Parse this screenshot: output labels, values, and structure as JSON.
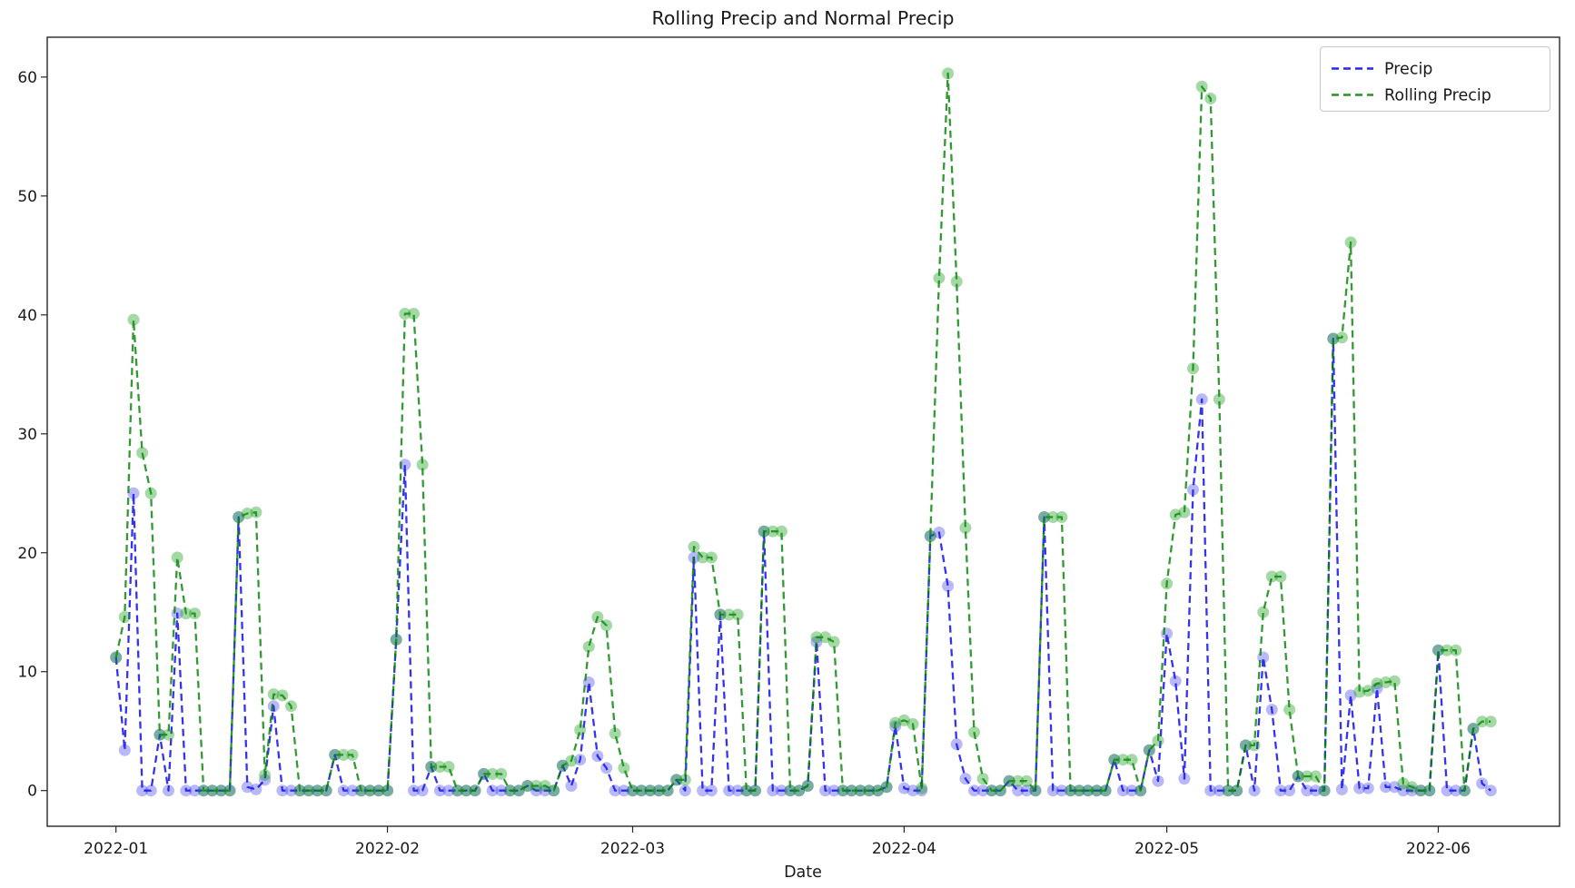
{
  "figure": {
    "title": "Rolling Precip and Normal Precip",
    "xlabel": "Date"
  },
  "legend": {
    "position": "upper right",
    "items": [
      {
        "label": "Precip",
        "color": "#0000ee"
      },
      {
        "label": "Rolling Precip",
        "color": "#1e7d1e"
      }
    ]
  },
  "chart_data": {
    "type": "line",
    "title": "Rolling Precip and Normal Precip",
    "xlabel": "Date",
    "ylabel": "",
    "grid": false,
    "legend_position": "upper right",
    "line_style": "dashed",
    "marker": "circle",
    "x_start_date": "2022-01-01",
    "x_frequency": "daily",
    "n_points": 158,
    "xtick_labels": [
      "2022-01",
      "2022-02",
      "2022-03",
      "2022-04",
      "2022-05",
      "2022-06"
    ],
    "xtick_day_offsets": [
      0,
      31,
      59,
      90,
      120,
      151
    ],
    "ytick_values": [
      0,
      10,
      20,
      30,
      40,
      50,
      60
    ],
    "ylim": [
      -3.0,
      63.35
    ],
    "xlim_day_offsets": [
      -7.85,
      164.85
    ],
    "series": [
      {
        "name": "Precip",
        "color": "#0000ee",
        "values": [
          11.2,
          3.4,
          25.0,
          0,
          0,
          4.7,
          0,
          14.9,
          0,
          0,
          0,
          0,
          0,
          0,
          23.0,
          0.3,
          0.1,
          0.9,
          7.1,
          0,
          0,
          0,
          0,
          0,
          0,
          3.0,
          0,
          0,
          0,
          0,
          0,
          0,
          12.7,
          27.4,
          0,
          0,
          2.0,
          0,
          0,
          0,
          0,
          0,
          1.4,
          0,
          0,
          0,
          0,
          0.4,
          0,
          0,
          0,
          2.1,
          0.4,
          2.6,
          9.1,
          2.9,
          1.9,
          0,
          0,
          0,
          0,
          0,
          0,
          0,
          0.9,
          0,
          19.6,
          0,
          0,
          14.8,
          0,
          0,
          0,
          0,
          21.8,
          0,
          0,
          0,
          0,
          0.4,
          12.5,
          0,
          0,
          0,
          0,
          0,
          0,
          0,
          0.3,
          5.4,
          0.2,
          0,
          0,
          21.4,
          21.7,
          17.2,
          3.9,
          1.0,
          0,
          0,
          0,
          0,
          0.8,
          0,
          0,
          0,
          23.0,
          0,
          0,
          0,
          0,
          0,
          0,
          0,
          2.6,
          0,
          0,
          0,
          3.4,
          0.8,
          13.2,
          9.2,
          1.0,
          25.3,
          32.9,
          0,
          0,
          0,
          0,
          3.8,
          0,
          11.2,
          6.8,
          0,
          0,
          1.2,
          0,
          0,
          0,
          38.0,
          0.1,
          8.0,
          0.2,
          0.2,
          8.6,
          0.3,
          0.3,
          0,
          0,
          0,
          0,
          11.8,
          0,
          0,
          0,
          5.2,
          0.6,
          0
        ]
      },
      {
        "name": "Rolling Precip",
        "color": "#1e7d1e",
        "window": "3-day rolling sum",
        "values": [
          11.2,
          14.6,
          39.6,
          28.4,
          25.0,
          4.7,
          4.7,
          19.6,
          14.9,
          14.9,
          0,
          0,
          0,
          0,
          23.0,
          23.3,
          23.4,
          1.3,
          8.1,
          8.0,
          7.1,
          0,
          0,
          0,
          0,
          3.0,
          3.0,
          3.0,
          0,
          0,
          0,
          0,
          12.7,
          40.1,
          40.1,
          27.4,
          2.0,
          2.0,
          2.0,
          0,
          0,
          0,
          1.4,
          1.4,
          1.4,
          0,
          0,
          0.4,
          0.4,
          0.4,
          0,
          2.1,
          2.5,
          5.1,
          12.1,
          14.6,
          13.9,
          4.8,
          1.9,
          0,
          0,
          0,
          0,
          0,
          0.9,
          0.9,
          20.5,
          19.6,
          19.6,
          14.8,
          14.8,
          14.8,
          0,
          0,
          21.8,
          21.8,
          21.8,
          0,
          0,
          0.4,
          12.9,
          12.9,
          12.5,
          0,
          0,
          0,
          0,
          0,
          0.3,
          5.7,
          5.9,
          5.6,
          0.2,
          21.4,
          43.1,
          60.3,
          42.8,
          22.1,
          4.9,
          1.0,
          0,
          0,
          0.8,
          0.8,
          0.8,
          0,
          23.0,
          23.0,
          23.0,
          0,
          0,
          0,
          0,
          0,
          2.6,
          2.6,
          2.6,
          0,
          3.4,
          4.2,
          17.4,
          23.2,
          23.4,
          35.5,
          59.2,
          58.2,
          32.9,
          0,
          0,
          3.8,
          3.8,
          15.0,
          18.0,
          18.0,
          6.8,
          1.2,
          1.2,
          1.2,
          0,
          38.0,
          38.1,
          46.1,
          8.3,
          8.4,
          9.0,
          9.1,
          9.2,
          0.6,
          0.3,
          0,
          0,
          11.8,
          11.8,
          11.8,
          0,
          5.2,
          5.8,
          5.8
        ]
      }
    ]
  },
  "style": {
    "background": "#ffffff",
    "spine_color": "#262626",
    "text_color": "#1a1a1a",
    "blue_line": "#0000ee",
    "blue_marker": "#2222ee",
    "green_line": "#007f00",
    "green_marker": "#119911",
    "legend_border": "#cccccc"
  }
}
